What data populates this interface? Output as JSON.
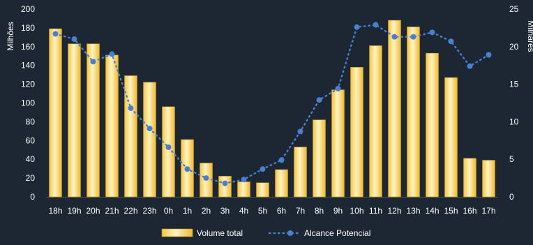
{
  "chart_data": {
    "type": "bar",
    "categories": [
      "18h",
      "19h",
      "20h",
      "21h",
      "22h",
      "23h",
      "0h",
      "1h",
      "2h",
      "3h",
      "4h",
      "5h",
      "6h",
      "7h",
      "8h",
      "9h",
      "10h",
      "11h",
      "12h",
      "13h",
      "14h",
      "15h",
      "16h",
      "17h"
    ],
    "series": [
      {
        "name": "Volume total",
        "type": "bar",
        "axis": "left",
        "color": "#ffe08a",
        "values": [
          179,
          163,
          163,
          151,
          129,
          122,
          96,
          61,
          36,
          22,
          16,
          15,
          29,
          53,
          82,
          114,
          138,
          161,
          188,
          181,
          153,
          127,
          41,
          39
        ]
      },
      {
        "name": "Alcance Potencial",
        "type": "line",
        "style": "dotted",
        "axis": "right",
        "color": "#4a7fd0",
        "values": [
          21.7,
          21.0,
          18.0,
          19.0,
          11.8,
          9.1,
          6.6,
          3.7,
          2.5,
          1.8,
          2.3,
          3.7,
          4.9,
          8.7,
          12.9,
          14.4,
          22.6,
          22.9,
          21.3,
          21.3,
          21.9,
          20.7,
          17.4,
          18.9
        ]
      }
    ],
    "ylabel_left": "Milhões",
    "ylabel_right": "Milhares",
    "ylim_left": [
      0,
      200
    ],
    "yticks_left": [
      0,
      20,
      40,
      60,
      80,
      100,
      120,
      140,
      160,
      180,
      200
    ],
    "ylim_right": [
      0,
      25
    ],
    "yticks_right": [
      0,
      5,
      10,
      15,
      20,
      25
    ],
    "grid": false,
    "legend_position": "bottom"
  }
}
